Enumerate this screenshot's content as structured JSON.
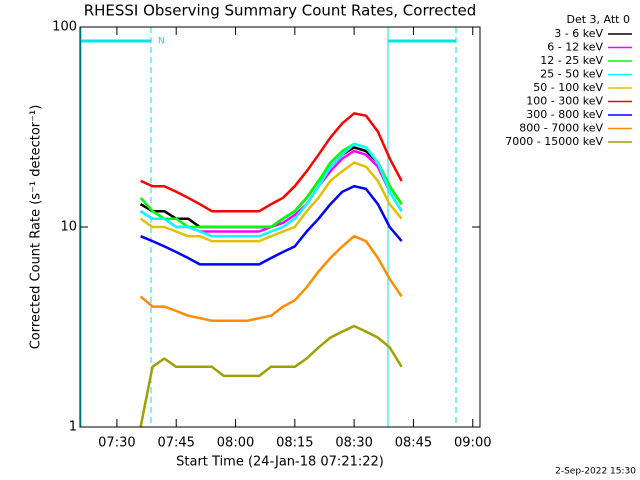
{
  "chart_data": {
    "type": "line",
    "title": "RHESSI Observing Summary Count Rates, Corrected",
    "x_label": "Start Time (24-Jan-18 07:21:22)",
    "y_label": "Corrected Count Rate (s⁻¹ detector⁻¹)",
    "legend_title": "Det 3, Att 0",
    "timestamp": "2-Sep-2022 15:30",
    "annotation": "N",
    "log_y": true,
    "legend": "outside-right",
    "xlim": [
      "07:20:40",
      "09:01:50"
    ],
    "xticks": [
      "07:30",
      "07:45",
      "08:00",
      "08:15",
      "08:30",
      "08:45",
      "09:00"
    ],
    "ylim": [
      1,
      100
    ],
    "yticks": [
      1,
      10,
      100
    ],
    "x": [
      "07:36",
      "07:39",
      "07:42",
      "07:45",
      "07:48",
      "07:51",
      "07:54",
      "07:57",
      "08:00",
      "08:03",
      "08:06",
      "08:09",
      "08:12",
      "08:15",
      "08:18",
      "08:21",
      "08:24",
      "08:27",
      "08:30",
      "08:33",
      "08:36",
      "08:39",
      "08:42"
    ],
    "series": [
      {
        "name": "3 - 6 keV",
        "color": "#000000",
        "values": [
          13,
          12,
          12,
          11,
          11,
          10,
          10,
          10,
          10,
          10,
          10,
          10,
          11,
          12,
          14,
          17,
          20,
          23,
          25,
          24,
          21,
          16,
          13
        ]
      },
      {
        "name": "6 - 12 keV",
        "color": "#ff00ff",
        "values": [
          12,
          11,
          11,
          10,
          10,
          9.5,
          9.5,
          9.5,
          9.5,
          9.5,
          9.5,
          10,
          10.5,
          11.5,
          13,
          16,
          19,
          22,
          24,
          23,
          20,
          15,
          12
        ]
      },
      {
        "name": "12 - 25 keV",
        "color": "#00ff00",
        "values": [
          14,
          12,
          11,
          11,
          10,
          10,
          10,
          10,
          10,
          10,
          10,
          10,
          11,
          12,
          14,
          17,
          21,
          24,
          26,
          25,
          21,
          16,
          13
        ]
      },
      {
        "name": "25 - 50 keV",
        "color": "#00ffff",
        "values": [
          12,
          11,
          11,
          10,
          10,
          9.5,
          9,
          9,
          9,
          9,
          9,
          9.5,
          10,
          11,
          13,
          16,
          20,
          23,
          26,
          25,
          21,
          15,
          12
        ]
      },
      {
        "name": "50 - 100 keV",
        "color": "#e0c000",
        "values": [
          11,
          10,
          10,
          9.5,
          9,
          9,
          8.5,
          8.5,
          8.5,
          8.5,
          8.5,
          9,
          9.5,
          10,
          12,
          14,
          17,
          19,
          21,
          20,
          17,
          13,
          11
        ]
      },
      {
        "name": "100 - 300 keV",
        "color": "#ff0000",
        "values": [
          17,
          16,
          16,
          15,
          14,
          13,
          12,
          12,
          12,
          12,
          12,
          13,
          14,
          16,
          19,
          23,
          28,
          33,
          37,
          36,
          30,
          22,
          17
        ]
      },
      {
        "name": "300 - 800 keV",
        "color": "#0000ff",
        "values": [
          9,
          8.5,
          8,
          7.5,
          7,
          6.5,
          6.5,
          6.5,
          6.5,
          6.5,
          6.5,
          7,
          7.5,
          8,
          9.5,
          11,
          13,
          15,
          16,
          15.5,
          13,
          10,
          8.5
        ]
      },
      {
        "name": "800 - 7000 keV",
        "color": "#ff8c00",
        "values": [
          4.5,
          4,
          4,
          3.8,
          3.6,
          3.5,
          3.4,
          3.4,
          3.4,
          3.4,
          3.5,
          3.6,
          4,
          4.3,
          5,
          6,
          7,
          8,
          9,
          8.5,
          7,
          5.5,
          4.5
        ]
      },
      {
        "name": "7000 - 15000 keV",
        "color": "#a0a000",
        "values": [
          1,
          2,
          2.2,
          2,
          2,
          2,
          2,
          1.8,
          1.8,
          1.8,
          1.8,
          2,
          2,
          2,
          2.2,
          2.5,
          2.8,
          3,
          3.2,
          3,
          2.8,
          2.5,
          2
        ]
      }
    ]
  }
}
